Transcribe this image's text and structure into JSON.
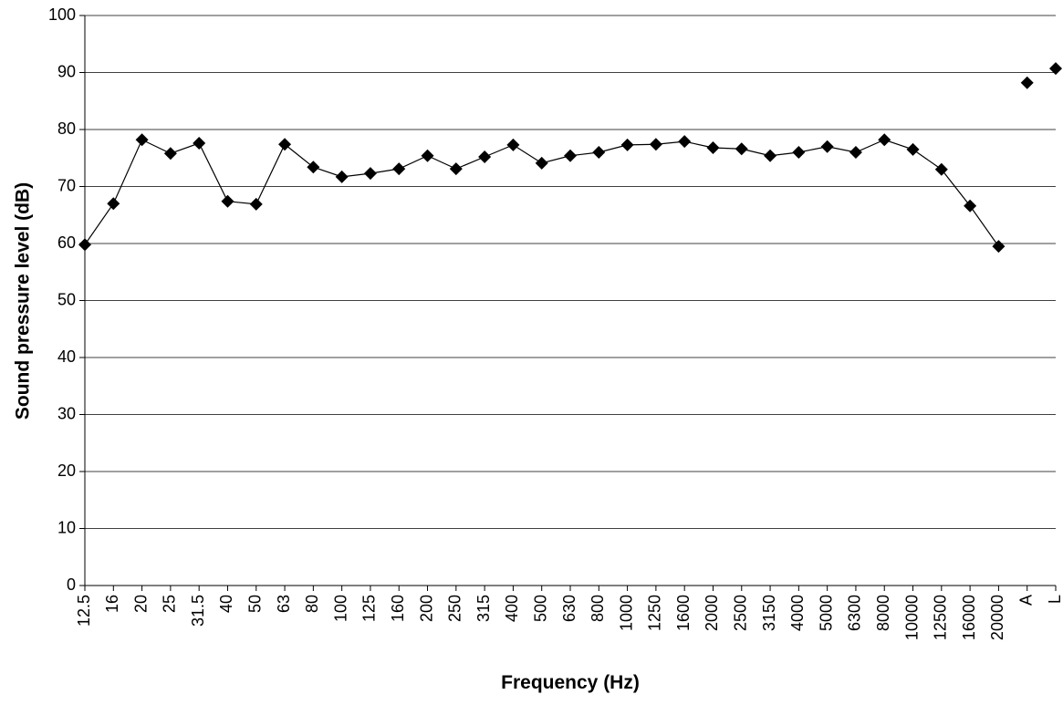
{
  "chart_data": {
    "type": "line",
    "x_label": "Frequency (Hz)",
    "y_label": "Sound pressure level (dB)",
    "categories": [
      "12.5",
      "16",
      "20",
      "25",
      "31.5",
      "40",
      "50",
      "63",
      "80",
      "100",
      "125",
      "160",
      "200",
      "250",
      "315",
      "400",
      "500",
      "630",
      "800",
      "1000",
      "1250",
      "1600",
      "2000",
      "2500",
      "3150",
      "4000",
      "5000",
      "6300",
      "8000",
      "10000",
      "12500",
      "16000",
      "20000",
      "A",
      "L"
    ],
    "series": [
      {
        "color": "#000000",
        "line": true,
        "values": [
          59.8,
          67.0,
          78.2,
          75.8,
          77.6,
          67.4,
          66.9,
          77.4,
          73.4,
          71.7,
          72.3,
          73.1,
          75.4,
          73.1,
          75.2,
          77.3,
          74.1,
          75.4,
          76.0,
          77.3,
          77.4,
          77.9,
          76.8,
          76.6,
          75.4,
          76.0,
          77.0,
          76.0,
          78.2,
          76.5,
          73.0,
          66.6,
          59.5,
          null,
          null
        ]
      },
      {
        "color": "#000000",
        "line": false,
        "values": [
          null,
          null,
          null,
          null,
          null,
          null,
          null,
          null,
          null,
          null,
          null,
          null,
          null,
          null,
          null,
          null,
          null,
          null,
          null,
          null,
          null,
          null,
          null,
          null,
          null,
          null,
          null,
          null,
          null,
          null,
          null,
          null,
          null,
          88.2,
          90.7
        ]
      }
    ],
    "ylim": [
      0,
      100
    ],
    "yticks": [
      0,
      10,
      20,
      30,
      40,
      50,
      60,
      70,
      80,
      90,
      100
    ],
    "grid": true
  }
}
